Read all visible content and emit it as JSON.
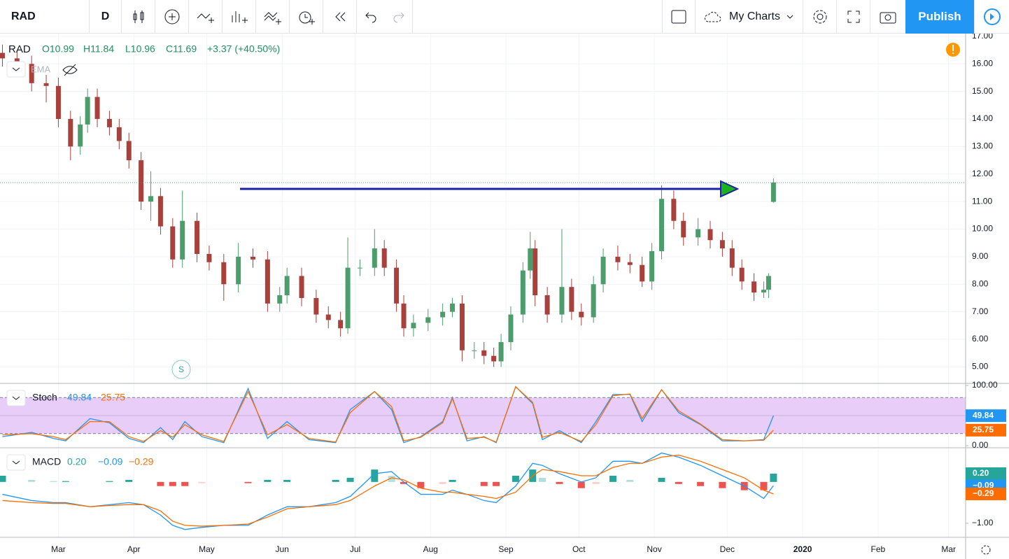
{
  "toolbar": {
    "symbol": "RAD",
    "interval": "D",
    "layouts": "My Charts",
    "publish": "Publish"
  },
  "chart_data": [
    {
      "type": "candlestick",
      "symbol": "RAD",
      "legend": {
        "open": "O10.99",
        "high": "H11.84",
        "low": "L10.96",
        "close": "C11.69",
        "change": "+3.37 (+40.50%)"
      },
      "indicator": "EMA",
      "marker": "S",
      "up_color": "#4c9c6c",
      "down_color": "#a8403c",
      "grid": true,
      "xlim": [
        35,
        432
      ],
      "xticks": [
        {
          "value": 59,
          "label": "Mar"
        },
        {
          "value": 90,
          "label": "Apr"
        },
        {
          "value": 120,
          "label": "May"
        },
        {
          "value": 151,
          "label": "Jun"
        },
        {
          "value": 181,
          "label": "Jul"
        },
        {
          "value": 212,
          "label": "Aug"
        },
        {
          "value": 243,
          "label": "Sep"
        },
        {
          "value": 273,
          "label": "Oct"
        },
        {
          "value": 304,
          "label": "Nov"
        },
        {
          "value": 334,
          "label": "Dec"
        },
        {
          "value": 365,
          "label": "2020"
        },
        {
          "value": 396,
          "label": "Feb"
        },
        {
          "value": 425,
          "label": "Mar"
        }
      ],
      "ylim": [
        4.4,
        17.1
      ],
      "yticks": [
        {
          "value": 5,
          "label": "5.00"
        },
        {
          "value": 6,
          "label": "6.00"
        },
        {
          "value": 7,
          "label": "7.00"
        },
        {
          "value": 8,
          "label": "8.00"
        },
        {
          "value": 9,
          "label": "9.00"
        },
        {
          "value": 10,
          "label": "10.00"
        },
        {
          "value": 11,
          "label": "11.00"
        },
        {
          "value": 12,
          "label": "12.00"
        },
        {
          "value": 13,
          "label": "13.00"
        },
        {
          "value": 14,
          "label": "14.00"
        },
        {
          "value": 15,
          "label": "15.00"
        },
        {
          "value": 16,
          "label": "16.00"
        },
        {
          "value": 17,
          "label": "17.00"
        }
      ],
      "x": [
        36,
        42,
        48,
        54,
        59,
        64,
        68,
        71,
        75,
        80,
        84,
        88,
        93,
        97,
        101,
        106,
        110,
        116,
        121,
        127,
        133,
        139,
        145,
        150,
        153,
        159,
        165,
        170,
        175,
        178,
        183,
        189,
        193,
        198,
        201,
        205,
        211,
        217,
        221,
        225,
        230,
        234,
        238,
        241,
        245,
        250,
        253,
        255,
        260,
        266,
        270,
        274,
        279,
        283,
        289,
        294,
        299,
        303,
        307,
        312,
        316,
        322,
        327,
        332,
        336,
        340,
        345,
        349,
        351,
        353
      ],
      "open": [
        16.4,
        16.2,
        16.0,
        15.3,
        15.2,
        14.0,
        13.0,
        13.8,
        14.8,
        14.0,
        13.7,
        13.2,
        12.5,
        11.0,
        11.2,
        10.1,
        8.9,
        10.3,
        9.1,
        8.8,
        8.0,
        9.0,
        8.9,
        7.3,
        7.6,
        8.3,
        7.5,
        6.9,
        6.7,
        6.4,
        8.6,
        8.6,
        9.3,
        8.6,
        7.3,
        6.4,
        6.6,
        6.8,
        7.0,
        7.3,
        5.6,
        5.6,
        5.4,
        5.2,
        5.9,
        6.9,
        8.5,
        9.3,
        7.6,
        6.9,
        7.9,
        7.0,
        6.8,
        8.0,
        9.0,
        8.8,
        8.7,
        8.1,
        9.2,
        11.1,
        10.3,
        9.7,
        10.0,
        9.6,
        9.3,
        8.6,
        8.1,
        7.7,
        7.8,
        10.99
      ],
      "high": [
        16.7,
        16.5,
        16.3,
        15.6,
        15.5,
        14.3,
        14.1,
        15.1,
        15.1,
        14.3,
        14.0,
        13.5,
        12.8,
        12.1,
        11.5,
        10.4,
        11.4,
        10.6,
        9.4,
        9.1,
        9.5,
        9.3,
        9.2,
        7.9,
        8.6,
        8.6,
        7.8,
        7.2,
        7.0,
        9.7,
        8.9,
        10.0,
        9.6,
        8.9,
        7.6,
        6.9,
        7.1,
        7.3,
        7.5,
        7.6,
        5.9,
        5.9,
        5.7,
        6.2,
        7.2,
        8.8,
        9.9,
        9.6,
        7.9,
        10.0,
        8.2,
        7.3,
        8.3,
        9.3,
        9.4,
        9.1,
        9.0,
        9.5,
        11.6,
        11.4,
        10.6,
        10.4,
        10.3,
        9.9,
        9.6,
        8.9,
        8.4,
        8.1,
        8.4,
        11.84
      ],
      "low": [
        15.9,
        15.7,
        15.0,
        14.6,
        13.7,
        12.5,
        12.7,
        13.5,
        13.7,
        13.4,
        12.9,
        12.2,
        10.7,
        10.3,
        9.8,
        8.6,
        8.6,
        8.8,
        8.5,
        7.4,
        7.7,
        8.6,
        7.0,
        7.0,
        7.3,
        7.2,
        6.6,
        6.4,
        6.1,
        6.2,
        8.3,
        8.3,
        8.3,
        7.0,
        6.1,
        6.1,
        6.3,
        6.5,
        6.8,
        5.2,
        5.3,
        5.1,
        5.0,
        5.0,
        5.6,
        6.6,
        8.2,
        7.2,
        6.6,
        6.6,
        6.7,
        6.5,
        6.6,
        7.7,
        8.5,
        8.4,
        7.9,
        7.8,
        8.9,
        10.0,
        9.4,
        9.4,
        9.3,
        9.0,
        8.3,
        7.8,
        7.4,
        7.5,
        7.5,
        10.96
      ],
      "close": [
        16.2,
        16.0,
        15.3,
        15.2,
        14.0,
        13.0,
        13.8,
        14.8,
        14.0,
        13.7,
        13.2,
        12.5,
        11.0,
        11.2,
        10.1,
        8.9,
        10.3,
        9.1,
        8.8,
        8.0,
        9.0,
        8.9,
        7.3,
        7.6,
        8.3,
        7.5,
        6.9,
        6.7,
        6.4,
        8.6,
        8.6,
        9.3,
        8.6,
        7.3,
        6.4,
        6.6,
        6.8,
        7.0,
        7.3,
        5.6,
        5.6,
        5.4,
        5.2,
        5.9,
        6.9,
        8.5,
        9.3,
        7.6,
        6.9,
        7.9,
        7.0,
        6.8,
        8.0,
        9.0,
        8.8,
        8.7,
        8.1,
        9.2,
        11.1,
        10.3,
        9.7,
        10.0,
        9.6,
        9.3,
        8.6,
        8.1,
        7.7,
        7.8,
        8.3,
        11.69
      ]
    },
    {
      "type": "line",
      "title": "Stoch",
      "band": [
        20,
        80
      ],
      "band_color": "#e7cdf8",
      "ylim": [
        -3.5,
        103.5
      ],
      "yticks": [
        {
          "value": 0,
          "label": "0.00"
        },
        {
          "value": 100,
          "label": "100.00"
        }
      ],
      "x": [
        36,
        48,
        57,
        62,
        72,
        80,
        88,
        94,
        101,
        106,
        111,
        118,
        127,
        137,
        145,
        153,
        162,
        173,
        179,
        189,
        196,
        201,
        208,
        217,
        221,
        227,
        234,
        239,
        247,
        254,
        258,
        265,
        274,
        280,
        287,
        294,
        299,
        307,
        314,
        323,
        332,
        341,
        349,
        353
      ],
      "series": [
        {
          "color": "#2196f3",
          "values": [
            15,
            22,
            12,
            8,
            45,
            38,
            12,
            5,
            30,
            10,
            40,
            15,
            5,
            95,
            12,
            40,
            10,
            5,
            60,
            90,
            60,
            5,
            15,
            40,
            80,
            8,
            15,
            5,
            98,
            70,
            10,
            25,
            5,
            40,
            85,
            85,
            40,
            93,
            55,
            35,
            8,
            8,
            10,
            49.84
          ]
        },
        {
          "color": "#ff6d00",
          "values": [
            18,
            20,
            15,
            10,
            40,
            40,
            15,
            7,
            25,
            14,
            35,
            18,
            7,
            90,
            18,
            35,
            12,
            6,
            55,
            90,
            65,
            8,
            14,
            38,
            78,
            12,
            14,
            6,
            98,
            72,
            14,
            22,
            7,
            35,
            83,
            86,
            45,
            93,
            58,
            36,
            10,
            8,
            9,
            25.75
          ]
        }
      ]
    },
    {
      "type": "macd",
      "title": "MACD",
      "ylim": [
        -1.34,
        0.81
      ],
      "yticks": [
        {
          "value": -1,
          "label": "−1.00"
        }
      ],
      "x": [
        36,
        48,
        57,
        62,
        72,
        80,
        88,
        94,
        101,
        106,
        111,
        118,
        127,
        137,
        145,
        153,
        162,
        173,
        179,
        189,
        196,
        201,
        208,
        217,
        221,
        227,
        234,
        239,
        247,
        254,
        258,
        265,
        274,
        280,
        287,
        294,
        299,
        307,
        314,
        323,
        332,
        341,
        349,
        353
      ],
      "series": [
        {
          "kind": "histogram",
          "color": "#26a69a",
          "colors": [
            "#26a69a",
            "#b2dfdb",
            "#ef5350",
            "#ffcdd2"
          ],
          "last_value_label": "0.20",
          "values": [
            0.15,
            0.05,
            0.02,
            0.02,
            0.0,
            0.02,
            0.05,
            0.0,
            -0.1,
            -0.1,
            -0.1,
            -0.03,
            0.0,
            -0.03,
            0.05,
            0.05,
            0.0,
            0.05,
            0.1,
            0.3,
            0.15,
            -0.05,
            -0.15,
            -0.05,
            0.05,
            0.0,
            -0.1,
            -0.1,
            0.15,
            0.3,
            0.1,
            -0.05,
            -0.15,
            -0.05,
            0.15,
            0.05,
            0.0,
            0.1,
            -0.05,
            -0.1,
            -0.15,
            -0.2,
            -0.2,
            0.2
          ]
        },
        {
          "kind": "line",
          "color": "#2196f3",
          "last_value_label": "−0.09",
          "values": [
            -0.3,
            -0.45,
            -0.5,
            -0.5,
            -0.6,
            -0.55,
            -0.5,
            -0.55,
            -0.8,
            -1.05,
            -1.15,
            -1.1,
            -1.05,
            -1.05,
            -0.8,
            -0.6,
            -0.6,
            -0.5,
            -0.35,
            0.2,
            0.25,
            0.0,
            -0.3,
            -0.3,
            -0.2,
            -0.3,
            -0.45,
            -0.5,
            -0.1,
            0.45,
            0.4,
            0.2,
            0.0,
            0.1,
            0.5,
            0.5,
            0.45,
            0.7,
            0.6,
            0.4,
            0.15,
            -0.1,
            -0.4,
            -0.09
          ]
        },
        {
          "kind": "line",
          "color": "#ff6d00",
          "last_value_label": "−0.29",
          "values": [
            -0.45,
            -0.5,
            -0.52,
            -0.52,
            -0.6,
            -0.57,
            -0.55,
            -0.55,
            -0.7,
            -0.95,
            -1.05,
            -1.07,
            -1.05,
            -1.02,
            -0.85,
            -0.65,
            -0.6,
            -0.55,
            -0.45,
            -0.1,
            0.1,
            0.05,
            -0.15,
            -0.25,
            -0.25,
            -0.3,
            -0.35,
            -0.4,
            -0.25,
            0.15,
            0.3,
            0.25,
            0.15,
            0.15,
            0.35,
            0.45,
            0.45,
            0.6,
            0.65,
            0.5,
            0.3,
            0.1,
            -0.2,
            -0.29
          ]
        }
      ]
    }
  ]
}
